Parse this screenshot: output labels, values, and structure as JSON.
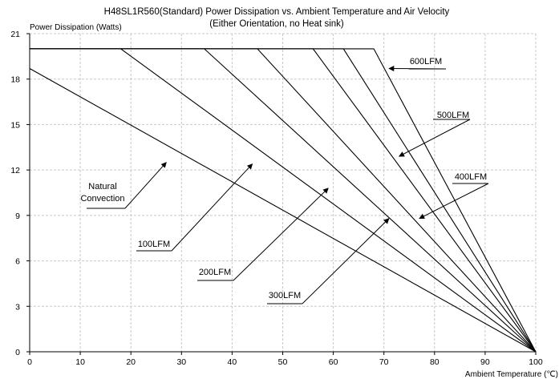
{
  "chart_data": {
    "type": "line",
    "title": "H48SL1R560(Standard) Power Dissipation vs. Ambient Temperature and Air Velocity",
    "subtitle": "(Either Orientation, no Heat sink)",
    "xlabel": "Ambient Temperature (℃)",
    "ylabel": "Power Dissipation (Watts)",
    "xlim": [
      0,
      100
    ],
    "ylim": [
      0,
      21
    ],
    "xticks": [
      0,
      10,
      20,
      30,
      40,
      50,
      60,
      70,
      80,
      90,
      100
    ],
    "yticks": [
      0,
      3,
      6,
      9,
      12,
      15,
      18,
      21
    ],
    "grid": true,
    "series": [
      {
        "name": "Natural Convection",
        "x": [
          0,
          100
        ],
        "y": [
          18.7,
          0
        ]
      },
      {
        "name": "100LFM",
        "x": [
          0,
          18,
          100
        ],
        "y": [
          20,
          20,
          0
        ]
      },
      {
        "name": "200LFM",
        "x": [
          0,
          34.5,
          100
        ],
        "y": [
          20,
          20,
          0
        ]
      },
      {
        "name": "300LFM",
        "x": [
          0,
          45,
          100
        ],
        "y": [
          20,
          20,
          0
        ]
      },
      {
        "name": "400LFM",
        "x": [
          0,
          56,
          100
        ],
        "y": [
          20,
          20,
          0
        ]
      },
      {
        "name": "500LFM",
        "x": [
          0,
          62,
          100
        ],
        "y": [
          20,
          20,
          0
        ]
      },
      {
        "name": "600LFM",
        "x": [
          0,
          68,
          100
        ],
        "y": [
          20,
          20,
          0
        ]
      }
    ],
    "annotations": [
      {
        "series": "Natural Convection",
        "lines": [
          "Natural",
          "Convection"
        ],
        "point": [
          27,
          12.5
        ]
      },
      {
        "series": "100LFM",
        "lines": [
          "100LFM"
        ],
        "point": [
          44,
          12.4
        ]
      },
      {
        "series": "200LFM",
        "lines": [
          "200LFM"
        ],
        "point": [
          59,
          10.8
        ]
      },
      {
        "series": "300LFM",
        "lines": [
          "300LFM"
        ],
        "point": [
          71,
          8.8
        ]
      },
      {
        "series": "400LFM",
        "lines": [
          "400LFM"
        ],
        "point": [
          77,
          8.8
        ]
      },
      {
        "series": "500LFM",
        "lines": [
          "500LFM"
        ],
        "point": [
          73,
          12.9
        ]
      },
      {
        "series": "600LFM",
        "lines": [
          "600LFM"
        ],
        "point": [
          71,
          18.7
        ]
      }
    ]
  }
}
